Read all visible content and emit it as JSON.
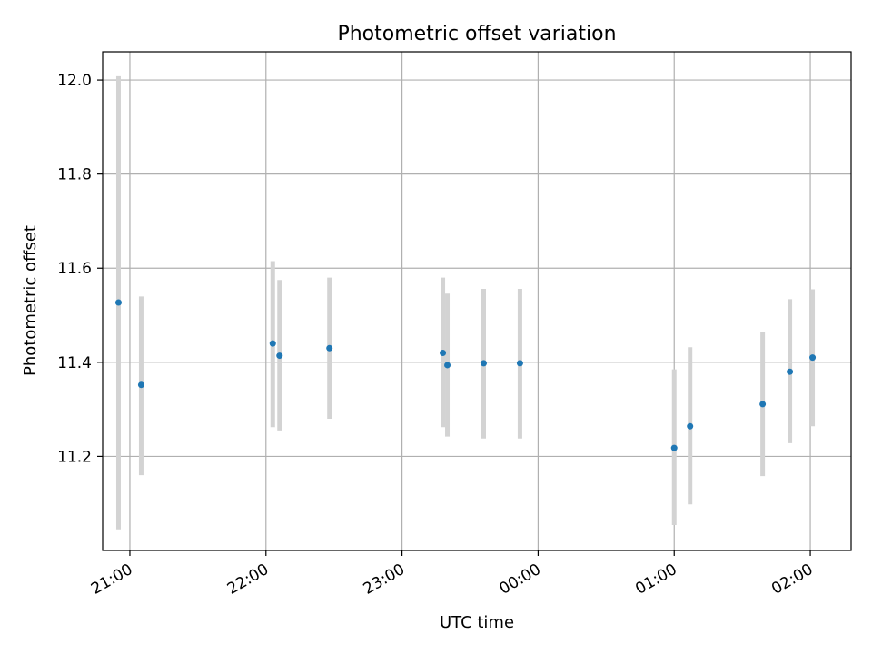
{
  "chart_data": {
    "type": "scatter",
    "title": "Photometric offset variation",
    "xlabel": "UTC time",
    "ylabel": "Photometric offset",
    "x_unit": "UTC",
    "x_range": [
      "20:48",
      "02:18"
    ],
    "y_range": [
      11.0,
      12.06
    ],
    "grid": true,
    "x_ticks": [
      "21:00",
      "22:00",
      "23:00",
      "00:00",
      "01:00",
      "02:00"
    ],
    "y_ticks": [
      "11.2",
      "11.4",
      "11.6",
      "11.8",
      "12.0"
    ],
    "y_tick_values": [
      11.2,
      11.4,
      11.6,
      11.8,
      12.0
    ],
    "point_color": "#1f77b4",
    "errorbar_color": "#d3d3d3",
    "points": [
      {
        "x": "20:55",
        "y": 11.527,
        "ylow": 11.045,
        "yhigh": 12.008
      },
      {
        "x": "21:05",
        "y": 11.352,
        "ylow": 11.16,
        "yhigh": 11.54
      },
      {
        "x": "22:03",
        "y": 11.44,
        "ylow": 11.262,
        "yhigh": 11.615
      },
      {
        "x": "22:06",
        "y": 11.414,
        "ylow": 11.255,
        "yhigh": 11.575
      },
      {
        "x": "22:28",
        "y": 11.43,
        "ylow": 11.28,
        "yhigh": 11.58
      },
      {
        "x": "23:18",
        "y": 11.42,
        "ylow": 11.262,
        "yhigh": 11.58
      },
      {
        "x": "23:20",
        "y": 11.394,
        "ylow": 11.242,
        "yhigh": 11.546
      },
      {
        "x": "23:36",
        "y": 11.398,
        "ylow": 11.238,
        "yhigh": 11.556
      },
      {
        "x": "23:52",
        "y": 11.398,
        "ylow": 11.238,
        "yhigh": 11.556
      },
      {
        "x": "01:00",
        "y": 11.218,
        "ylow": 11.054,
        "yhigh": 11.385
      },
      {
        "x": "01:07",
        "y": 11.264,
        "ylow": 11.098,
        "yhigh": 11.432
      },
      {
        "x": "01:39",
        "y": 11.311,
        "ylow": 11.158,
        "yhigh": 11.465
      },
      {
        "x": "01:51",
        "y": 11.38,
        "ylow": 11.228,
        "yhigh": 11.534
      },
      {
        "x": "02:01",
        "y": 11.41,
        "ylow": 11.264,
        "yhigh": 11.555
      }
    ]
  }
}
